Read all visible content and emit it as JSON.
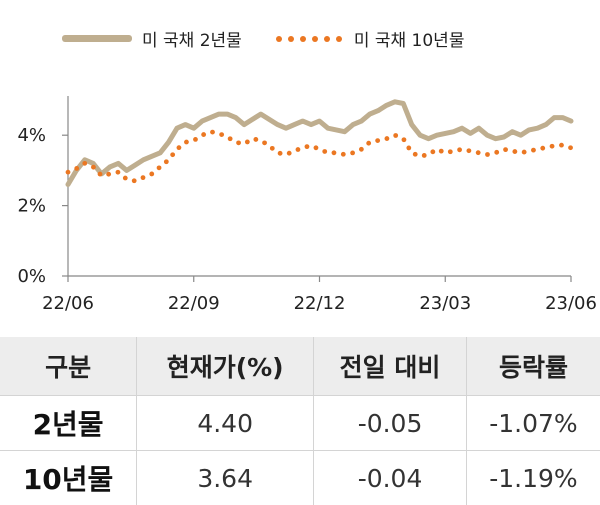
{
  "chart_data": {
    "type": "line",
    "legend_position": "top",
    "x_ticks": [
      "22/06",
      "22/09",
      "22/12",
      "23/03",
      "23/06"
    ],
    "y_ticks": [
      "0%",
      "2%",
      "4%"
    ],
    "ylim": [
      0,
      5
    ],
    "grid": false,
    "series": [
      {
        "name": "미 국채 2년물",
        "color": "#BFAE8F",
        "style": "solid",
        "x": [
          0,
          0.2,
          0.4,
          0.6,
          0.8,
          1.0,
          1.2,
          1.4,
          1.6,
          1.8,
          2.0,
          2.2,
          2.4,
          2.6,
          2.8,
          3.0,
          3.2,
          3.4,
          3.6,
          3.8,
          4.0,
          4.2,
          4.4,
          4.6,
          4.8,
          5.0,
          5.2,
          5.4,
          5.6,
          5.8,
          6.0,
          6.2,
          6.4,
          6.6,
          6.8,
          7.0,
          7.2,
          7.4,
          7.6,
          7.8,
          8.0,
          8.2,
          8.4,
          8.6,
          8.8,
          9.0,
          9.2,
          9.4,
          9.6,
          9.8,
          10.0,
          10.2,
          10.4,
          10.6,
          10.8,
          11.0,
          11.2,
          11.4,
          11.6,
          11.8,
          12.0
        ],
        "values": [
          2.6,
          3.0,
          3.3,
          3.2,
          2.9,
          3.1,
          3.2,
          3.0,
          3.15,
          3.3,
          3.4,
          3.5,
          3.8,
          4.2,
          4.3,
          4.2,
          4.4,
          4.5,
          4.6,
          4.6,
          4.5,
          4.3,
          4.45,
          4.6,
          4.45,
          4.3,
          4.2,
          4.3,
          4.4,
          4.3,
          4.4,
          4.2,
          4.15,
          4.1,
          4.3,
          4.4,
          4.6,
          4.7,
          4.85,
          4.95,
          4.9,
          4.3,
          4.0,
          3.9,
          4.0,
          4.05,
          4.1,
          4.2,
          4.05,
          4.2,
          4.0,
          3.9,
          3.95,
          4.1,
          4.0,
          4.15,
          4.2,
          4.3,
          4.5,
          4.5,
          4.4
        ]
      },
      {
        "name": "미 국채 10년물",
        "color": "#EB7722",
        "style": "dotted",
        "x": [
          0,
          0.2,
          0.4,
          0.6,
          0.8,
          1.0,
          1.2,
          1.4,
          1.6,
          1.8,
          2.0,
          2.2,
          2.4,
          2.6,
          2.8,
          3.0,
          3.2,
          3.4,
          3.6,
          3.8,
          4.0,
          4.2,
          4.4,
          4.6,
          4.8,
          5.0,
          5.2,
          5.4,
          5.6,
          5.8,
          6.0,
          6.2,
          6.4,
          6.6,
          6.8,
          7.0,
          7.2,
          7.4,
          7.6,
          7.8,
          8.0,
          8.2,
          8.4,
          8.6,
          8.8,
          9.0,
          9.2,
          9.4,
          9.6,
          9.8,
          10.0,
          10.2,
          10.4,
          10.6,
          10.8,
          11.0,
          11.2,
          11.4,
          11.6,
          11.8,
          12.0
        ],
        "values": [
          2.95,
          3.05,
          3.2,
          3.1,
          2.85,
          2.9,
          2.95,
          2.75,
          2.7,
          2.8,
          2.9,
          3.1,
          3.3,
          3.6,
          3.8,
          3.85,
          4.0,
          4.1,
          4.05,
          3.95,
          3.8,
          3.75,
          3.9,
          3.85,
          3.7,
          3.5,
          3.45,
          3.55,
          3.65,
          3.7,
          3.6,
          3.5,
          3.5,
          3.45,
          3.5,
          3.6,
          3.8,
          3.85,
          3.9,
          4.0,
          3.9,
          3.5,
          3.4,
          3.45,
          3.6,
          3.5,
          3.55,
          3.6,
          3.55,
          3.5,
          3.45,
          3.5,
          3.6,
          3.55,
          3.5,
          3.55,
          3.6,
          3.65,
          3.7,
          3.72,
          3.64
        ]
      }
    ]
  },
  "table": {
    "headers": [
      "구분",
      "현재가(%)",
      "전일 대비",
      "등락률"
    ],
    "rows": [
      [
        "2년물",
        "4.40",
        "-0.05",
        "-1.07%"
      ],
      [
        "10년물",
        "3.64",
        "-0.04",
        "-1.19%"
      ]
    ]
  }
}
